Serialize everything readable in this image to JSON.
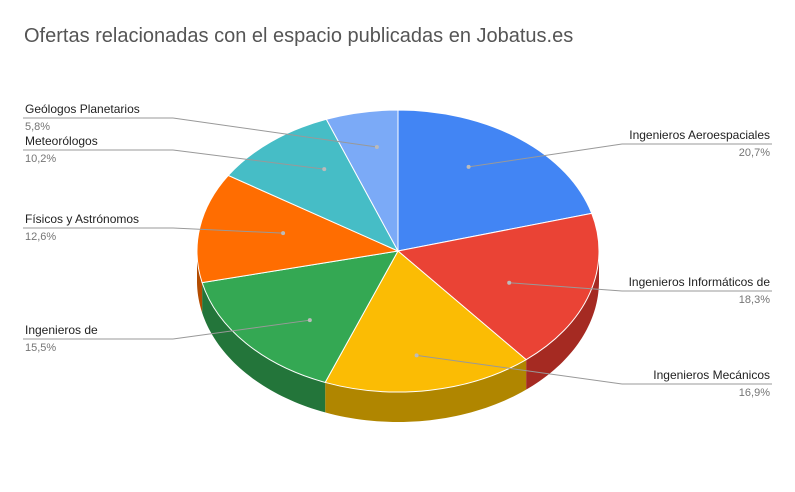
{
  "chart_data": {
    "type": "pie",
    "three_d": true,
    "title": "Ofertas relacionadas con el espacio publicadas en Jobatus.es",
    "slices": [
      {
        "label": "Ingenieros Aeroespaciales",
        "value": 20.7,
        "percent_label": "20,7%",
        "color": "#4285f4",
        "side_color": "#3367c4"
      },
      {
        "label": "Ingenieros Informáticos de",
        "value": 18.3,
        "percent_label": "18,3%",
        "color": "#ea4335",
        "side_color": "#a52a22"
      },
      {
        "label": "Ingenieros Mecánicos",
        "value": 16.9,
        "percent_label": "16,9%",
        "color": "#fbbc04",
        "side_color": "#b08600"
      },
      {
        "label": "Ingenieros de",
        "value": 15.5,
        "percent_label": "15,5%",
        "color": "#34a853",
        "side_color": "#23753a"
      },
      {
        "label": "Físicos y Astrónomos",
        "value": 12.6,
        "percent_label": "12,6%",
        "color": "#ff6d01",
        "side_color": "#b34c00"
      },
      {
        "label": "Meteorólogos",
        "value": 10.2,
        "percent_label": "10,2%",
        "color": "#46bdc6",
        "side_color": "#30858b"
      },
      {
        "label": "Geólogos Planetarios",
        "value": 5.8,
        "percent_label": "5,8%",
        "color": "#7baaf7",
        "side_color": "#5677ad"
      }
    ],
    "legend": "none",
    "labels_position": "outside-with-leader-lines"
  }
}
